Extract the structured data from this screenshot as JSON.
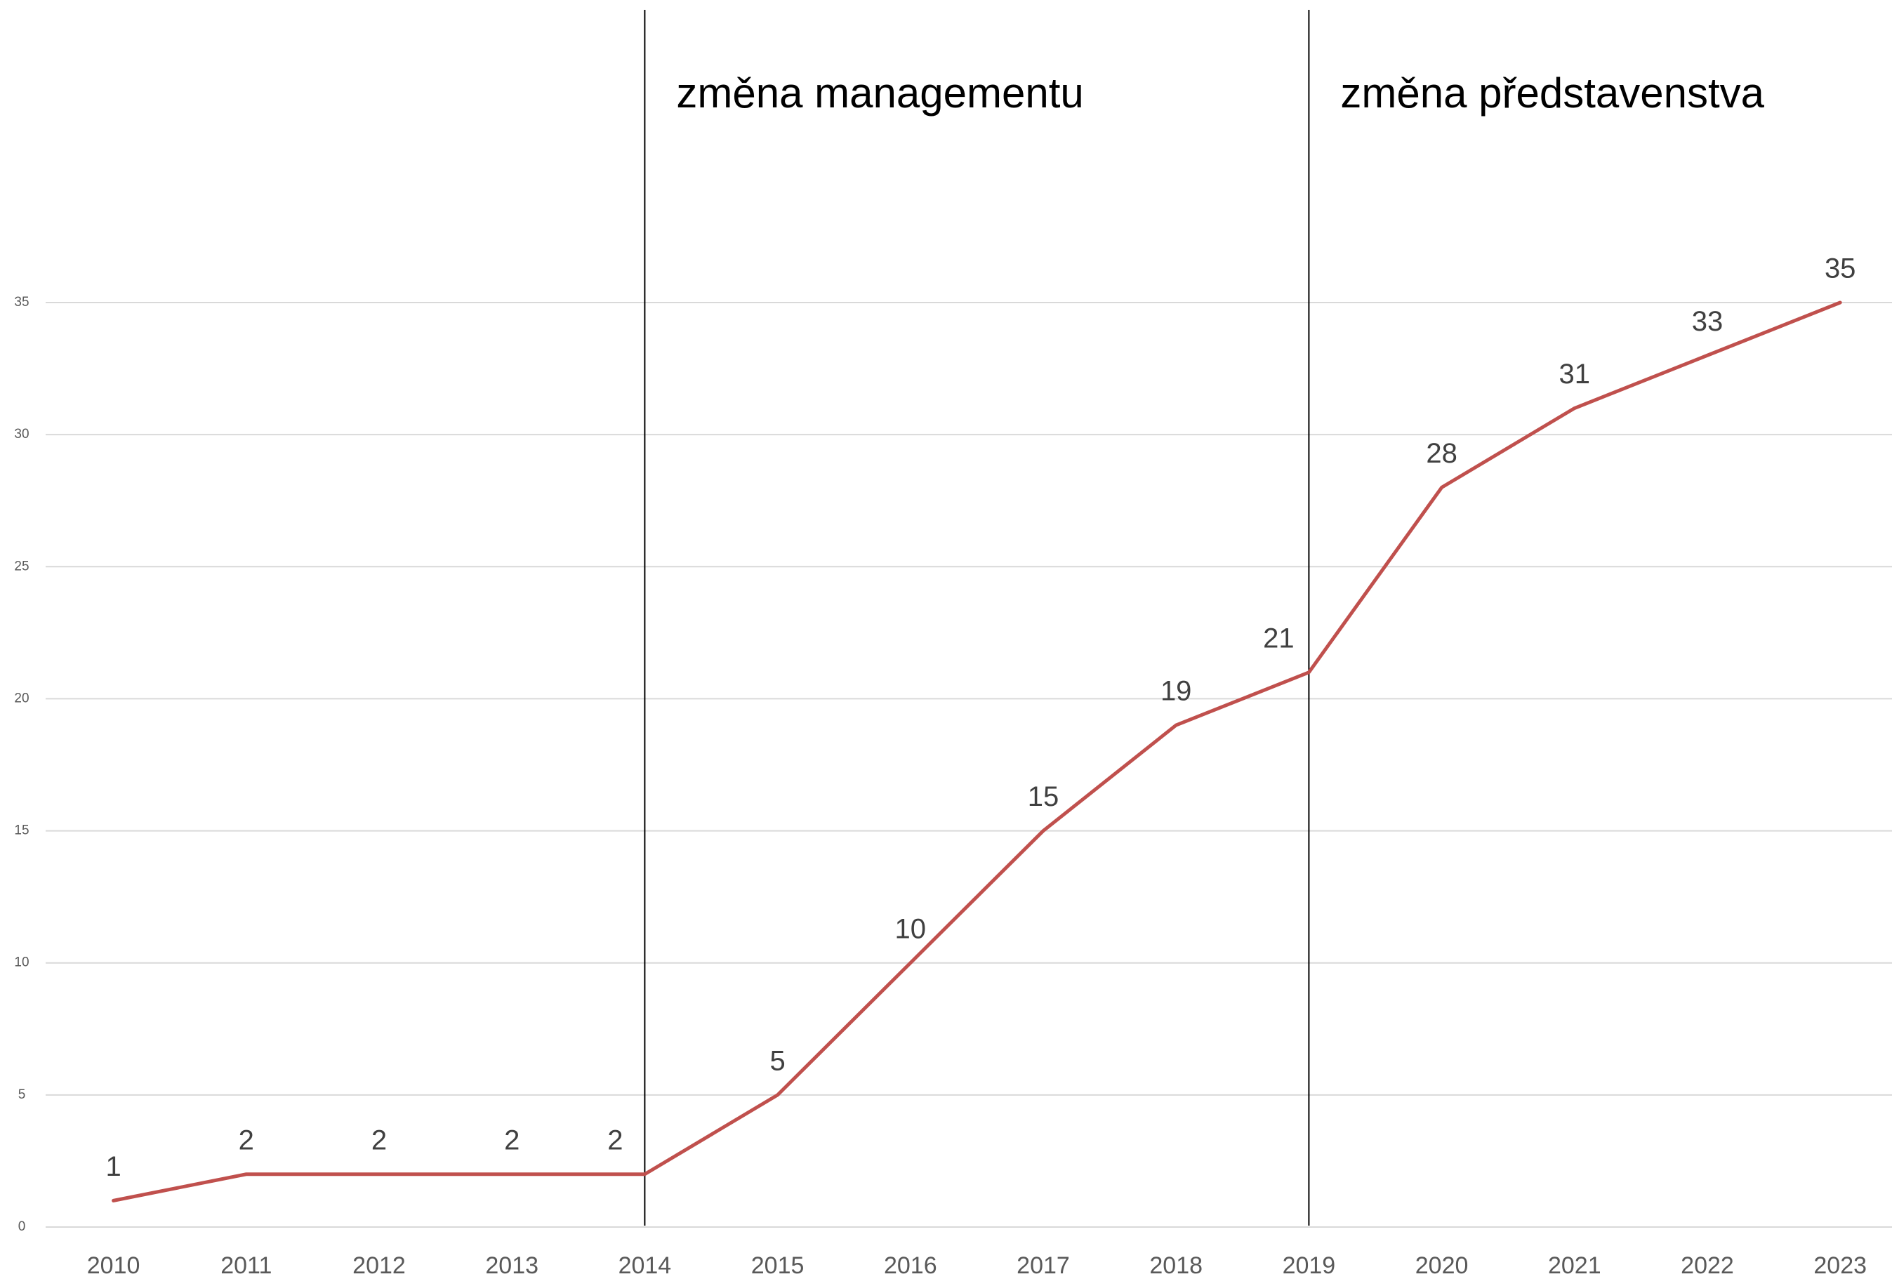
{
  "chart_data": {
    "type": "line",
    "categories": [
      "2010",
      "2011",
      "2012",
      "2013",
      "2014",
      "2015",
      "2016",
      "2017",
      "2018",
      "2019",
      "2020",
      "2021",
      "2022",
      "2023"
    ],
    "series": [
      {
        "name": "value",
        "color": "#c0504d",
        "values": [
          1,
          2,
          2,
          2,
          2,
          5,
          10,
          15,
          19,
          21,
          28,
          31,
          33,
          35
        ]
      }
    ],
    "ylim": [
      0,
      35
    ],
    "yticks": [
      0,
      5,
      10,
      15,
      20,
      25,
      30,
      35
    ],
    "grid": true,
    "annotations": [
      {
        "text": "změna managementu",
        "x": "2014"
      },
      {
        "text": "změna představenstva",
        "x": "2019"
      }
    ]
  }
}
